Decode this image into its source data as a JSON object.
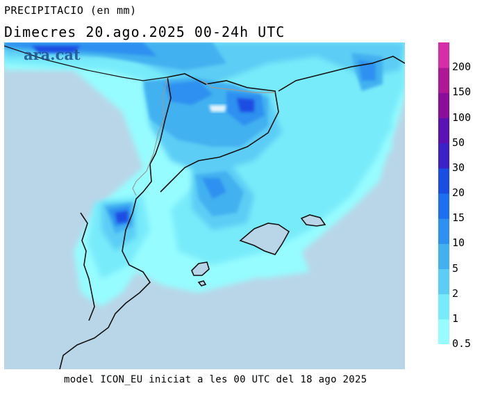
{
  "header": {
    "title": "PRECIPITACIO (en mm)",
    "subtitle": "Dimecres  20.ago.2025 00-24h UTC"
  },
  "footer": {
    "text": "model ICON_EU iniciat a les 00 UTC del 18 ago 2025"
  },
  "logo": {
    "text": "ara.cat"
  },
  "colors": {
    "sea": "#b9d6e8",
    "land": "#b9d6e8",
    "coast": "#111111",
    "border": "#9a9a9a"
  },
  "legend": {
    "colors": [
      "#96fcff",
      "#78ebfa",
      "#5ccdf5",
      "#42b1f0",
      "#2e90f0",
      "#1c6fef",
      "#1a4ee2",
      "#3a21c8",
      "#5b12b2",
      "#8b0e9a",
      "#ae1894",
      "#d42ea9"
    ],
    "labels": [
      "0.5",
      "1",
      "2",
      "5",
      "10",
      "15",
      "20",
      "30",
      "50",
      "100",
      "150",
      "200"
    ]
  }
}
